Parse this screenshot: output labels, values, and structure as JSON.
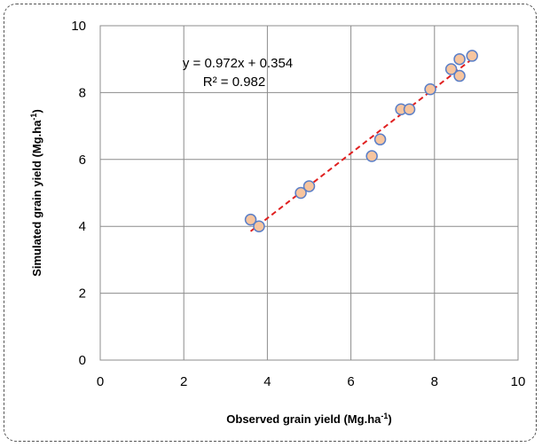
{
  "chart_data": {
    "type": "scatter",
    "xlabel": "Observed grain yield (Mg.ha",
    "xlabel_sup": "-1",
    "xlabel_end": ")",
    "ylabel": "Simulated grain yield (Mg.ha",
    "ylabel_sup": "-1",
    "ylabel_end": ")",
    "xlim": [
      0,
      10
    ],
    "ylim": [
      0,
      10
    ],
    "xticks": [
      "0",
      "2",
      "4",
      "6",
      "8",
      "10"
    ],
    "yticks": [
      "0",
      "2",
      "4",
      "6",
      "8",
      "10"
    ],
    "grid": true,
    "points": [
      {
        "x": 3.6,
        "y": 4.2
      },
      {
        "x": 3.8,
        "y": 4.0
      },
      {
        "x": 4.8,
        "y": 5.0
      },
      {
        "x": 5.0,
        "y": 5.2
      },
      {
        "x": 6.5,
        "y": 6.1
      },
      {
        "x": 6.7,
        "y": 6.6
      },
      {
        "x": 7.2,
        "y": 7.5
      },
      {
        "x": 7.4,
        "y": 7.5
      },
      {
        "x": 7.9,
        "y": 8.1
      },
      {
        "x": 8.4,
        "y": 8.7
      },
      {
        "x": 8.6,
        "y": 9.0
      },
      {
        "x": 8.6,
        "y": 8.5
      },
      {
        "x": 8.9,
        "y": 9.1
      }
    ],
    "trendline": {
      "slope": 0.972,
      "intercept": 0.354,
      "x_start": 3.6,
      "x_end": 8.9
    },
    "equation": "y = 0.972x + 0.354",
    "r_squared": "R² = 0.982",
    "colors": {
      "marker_fill": "#f7c59f",
      "marker_stroke": "#5b7fc7",
      "trendline": "#e02020",
      "grid": "#8c8c8c"
    }
  }
}
